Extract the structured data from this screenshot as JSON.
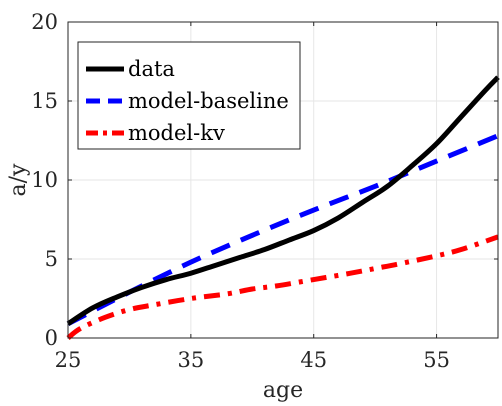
{
  "chart_data": {
    "type": "line",
    "xlabel": "age",
    "ylabel": "a/y",
    "xlim": [
      25,
      60
    ],
    "ylim": [
      0,
      20
    ],
    "xticks": [
      25,
      35,
      45,
      55
    ],
    "yticks": [
      0,
      5,
      10,
      15,
      20
    ],
    "xtick_labels": [
      "25",
      "35",
      "45",
      "55"
    ],
    "ytick_labels": [
      "0",
      "5",
      "10",
      "15",
      "20"
    ],
    "grid": true,
    "legend_location": "top-left",
    "series": [
      {
        "name": "data",
        "color": "#000000",
        "style": "solid",
        "x": [
          25,
          27,
          29,
          31,
          33,
          35,
          37,
          39,
          41,
          43,
          45,
          47,
          49,
          51,
          53,
          55,
          57,
          59,
          60
        ],
        "y": [
          0.9,
          1.9,
          2.6,
          3.2,
          3.7,
          4.1,
          4.6,
          5.1,
          5.6,
          6.2,
          6.8,
          7.6,
          8.6,
          9.6,
          10.9,
          12.3,
          14.0,
          15.7,
          16.5
        ]
      },
      {
        "name": "model-baseline",
        "color": "#0000ff",
        "style": "dashed",
        "x": [
          25,
          30,
          35,
          40,
          45,
          50,
          55,
          60
        ],
        "y": [
          0.9,
          2.9,
          4.8,
          6.5,
          8.1,
          9.6,
          11.2,
          12.8
        ]
      },
      {
        "name": "model-kv",
        "color": "#ff0000",
        "style": "dashdot",
        "x": [
          25,
          26,
          28,
          30,
          32,
          35,
          38,
          40,
          42,
          45,
          48,
          50,
          52,
          55,
          57,
          60
        ],
        "y": [
          0.0,
          0.6,
          1.3,
          1.8,
          2.1,
          2.5,
          2.8,
          3.1,
          3.3,
          3.7,
          4.1,
          4.4,
          4.7,
          5.2,
          5.6,
          6.4
        ]
      }
    ]
  }
}
